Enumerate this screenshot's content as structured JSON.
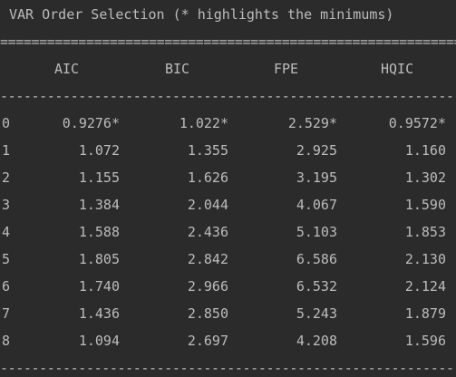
{
  "title": "VAR Order Selection (* highlights the minimums)",
  "rule_equals": "==============================================================",
  "rule_dashes": "--------------------------------------------------------------",
  "headers": [
    "AIC",
    "BIC",
    "FPE",
    "HQIC"
  ],
  "rows": [
    {
      "idx": "0",
      "aic": "0.9276*",
      "bic": "1.022*",
      "fpe": "2.529*",
      "hqic": "0.9572*"
    },
    {
      "idx": "1",
      "aic": "1.072",
      "bic": "1.355",
      "fpe": "2.925",
      "hqic": "1.160"
    },
    {
      "idx": "2",
      "aic": "1.155",
      "bic": "1.626",
      "fpe": "3.195",
      "hqic": "1.302"
    },
    {
      "idx": "3",
      "aic": "1.384",
      "bic": "2.044",
      "fpe": "4.067",
      "hqic": "1.590"
    },
    {
      "idx": "4",
      "aic": "1.588",
      "bic": "2.436",
      "fpe": "5.103",
      "hqic": "1.853"
    },
    {
      "idx": "5",
      "aic": "1.805",
      "bic": "2.842",
      "fpe": "6.586",
      "hqic": "2.130"
    },
    {
      "idx": "6",
      "aic": "1.740",
      "bic": "2.966",
      "fpe": "6.532",
      "hqic": "2.124"
    },
    {
      "idx": "7",
      "aic": "1.436",
      "bic": "2.850",
      "fpe": "5.243",
      "hqic": "1.879"
    },
    {
      "idx": "8",
      "aic": "1.094",
      "bic": "2.697",
      "fpe": "4.208",
      "hqic": "1.596"
    }
  ]
}
